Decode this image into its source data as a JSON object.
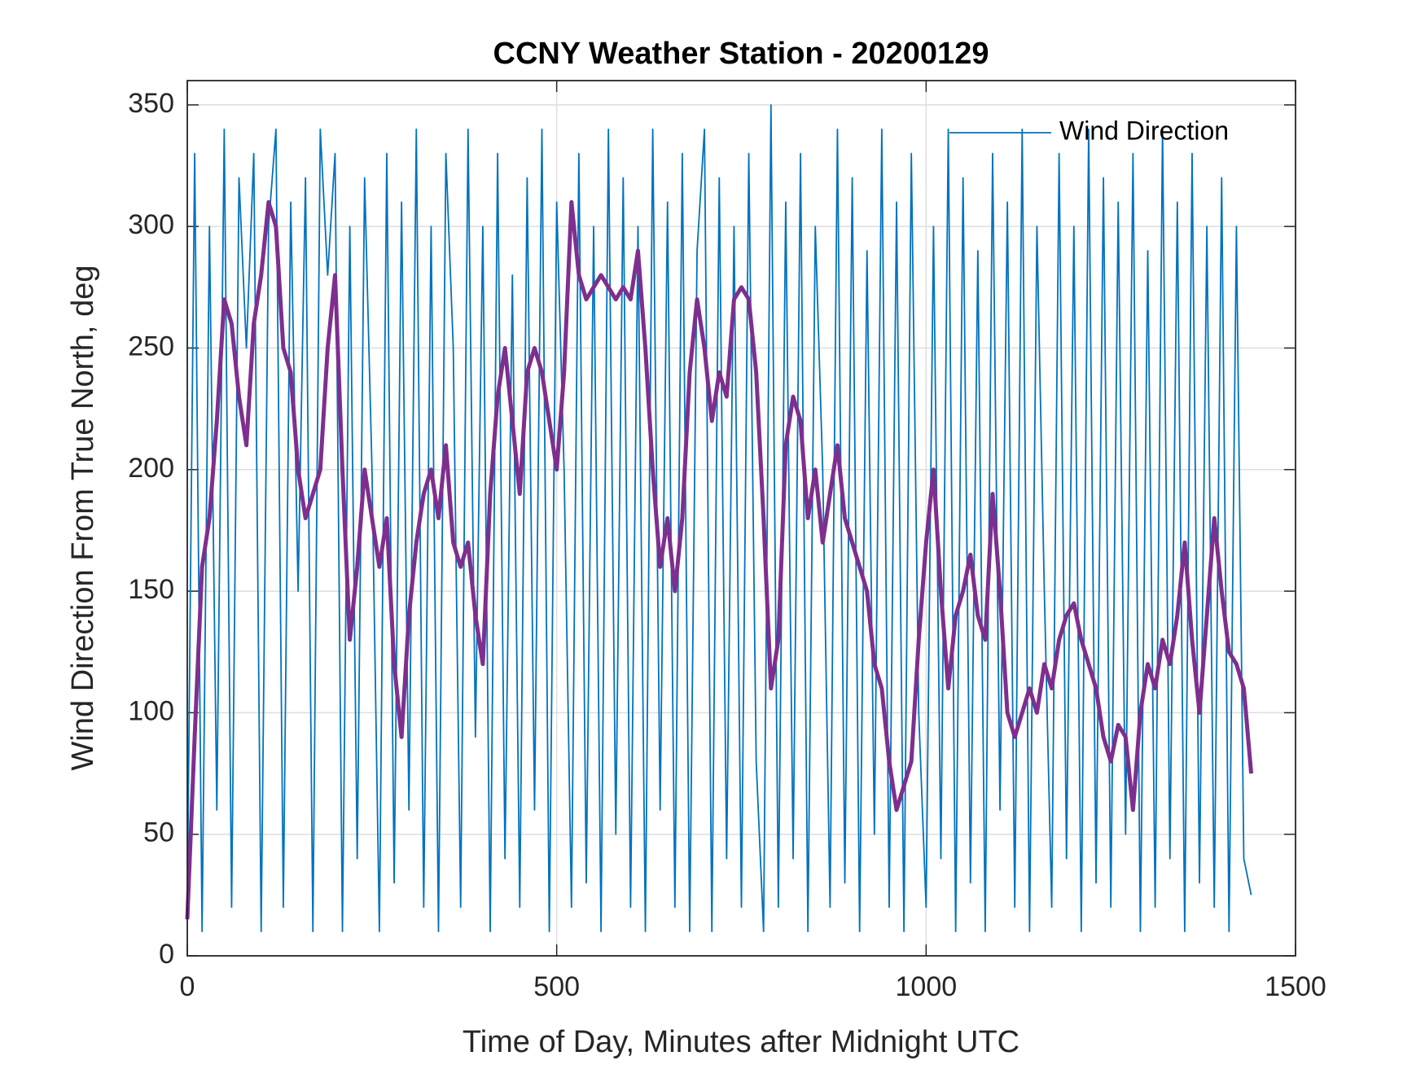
{
  "chart_data": {
    "type": "line",
    "title": "CCNY Weather Station - 20200129",
    "xlabel": "Time of Day, Minutes after Midnight UTC",
    "ylabel": "Wind Direction From True North, deg",
    "x": [
      0,
      10,
      20,
      30,
      40,
      50,
      60,
      70,
      80,
      90,
      100,
      110,
      120,
      130,
      140,
      150,
      160,
      170,
      180,
      190,
      200,
      210,
      220,
      230,
      240,
      250,
      260,
      270,
      280,
      290,
      300,
      310,
      320,
      330,
      340,
      350,
      360,
      370,
      380,
      390,
      400,
      410,
      420,
      430,
      440,
      450,
      460,
      470,
      480,
      490,
      500,
      510,
      520,
      530,
      540,
      550,
      560,
      570,
      580,
      590,
      600,
      610,
      620,
      630,
      640,
      650,
      660,
      670,
      680,
      690,
      700,
      710,
      720,
      730,
      740,
      750,
      760,
      770,
      780,
      790,
      800,
      810,
      820,
      830,
      840,
      850,
      860,
      870,
      880,
      890,
      900,
      910,
      920,
      930,
      940,
      950,
      960,
      970,
      980,
      990,
      1000,
      1010,
      1020,
      1030,
      1040,
      1050,
      1060,
      1070,
      1080,
      1090,
      1100,
      1110,
      1120,
      1130,
      1140,
      1150,
      1160,
      1170,
      1180,
      1190,
      1200,
      1210,
      1220,
      1230,
      1240,
      1250,
      1260,
      1270,
      1280,
      1290,
      1300,
      1310,
      1320,
      1330,
      1340,
      1350,
      1360,
      1370,
      1380,
      1390,
      1400,
      1410,
      1420,
      1430,
      1440
    ],
    "series": [
      {
        "name": "Wind Direction",
        "color": "#0072BD",
        "values": [
          20,
          330,
          10,
          300,
          60,
          340,
          20,
          320,
          250,
          330,
          10,
          300,
          340,
          20,
          310,
          150,
          320,
          10,
          340,
          280,
          330,
          10,
          300,
          40,
          320,
          200,
          10,
          330,
          30,
          310,
          60,
          340,
          20,
          300,
          10,
          330,
          250,
          20,
          340,
          90,
          300,
          10,
          330,
          40,
          280,
          20,
          320,
          60,
          340,
          10,
          310,
          200,
          20,
          330,
          30,
          300,
          10,
          340,
          50,
          320,
          20,
          300,
          10,
          340,
          60,
          310,
          20,
          330,
          10,
          290,
          340,
          10,
          320,
          40,
          300,
          20,
          330,
          80,
          10,
          350,
          20,
          310,
          40,
          330,
          10,
          300,
          200,
          20,
          340,
          30,
          320,
          10,
          290,
          50,
          340,
          20,
          310,
          10,
          330,
          100,
          20,
          300,
          40,
          340,
          10,
          320,
          30,
          290,
          10,
          330,
          60,
          310,
          20,
          340,
          10,
          300,
          150,
          20,
          330,
          40,
          300,
          10,
          340,
          30,
          320,
          20,
          310,
          50,
          330,
          10,
          290,
          20,
          340,
          40,
          310,
          10,
          330,
          30,
          300,
          20,
          320,
          10,
          300,
          40,
          25
        ]
      },
      {
        "color": "#7E2F8E",
        "values": [
          15,
          90,
          160,
          180,
          220,
          270,
          260,
          230,
          210,
          260,
          280,
          310,
          300,
          250,
          240,
          200,
          180,
          190,
          200,
          250,
          280,
          200,
          130,
          160,
          200,
          180,
          160,
          180,
          120,
          90,
          140,
          170,
          190,
          200,
          180,
          210,
          170,
          160,
          170,
          140,
          120,
          190,
          230,
          250,
          220,
          190,
          240,
          250,
          240,
          220,
          200,
          240,
          310,
          280,
          270,
          275,
          280,
          275,
          270,
          275,
          270,
          290,
          250,
          200,
          160,
          180,
          150,
          180,
          240,
          270,
          250,
          220,
          240,
          230,
          270,
          275,
          270,
          240,
          180,
          110,
          130,
          210,
          230,
          220,
          180,
          200,
          170,
          190,
          210,
          180,
          170,
          160,
          150,
          120,
          110,
          80,
          60,
          70,
          80,
          130,
          170,
          200,
          150,
          110,
          140,
          150,
          165,
          140,
          130,
          190,
          150,
          100,
          90,
          100,
          110,
          100,
          120,
          110,
          130,
          140,
          145,
          130,
          120,
          110,
          90,
          80,
          95,
          90,
          60,
          100,
          120,
          110,
          130,
          120,
          140,
          170,
          130,
          100,
          140,
          180,
          150,
          125,
          120,
          110,
          75
        ]
      }
    ],
    "xlim": [
      0,
      1500
    ],
    "xticks": [
      0,
      500,
      1000,
      1500
    ],
    "ylim": [
      0,
      360
    ],
    "yticks": [
      0,
      50,
      100,
      150,
      200,
      250,
      300,
      350
    ],
    "grid": true,
    "legend": "northeast"
  }
}
